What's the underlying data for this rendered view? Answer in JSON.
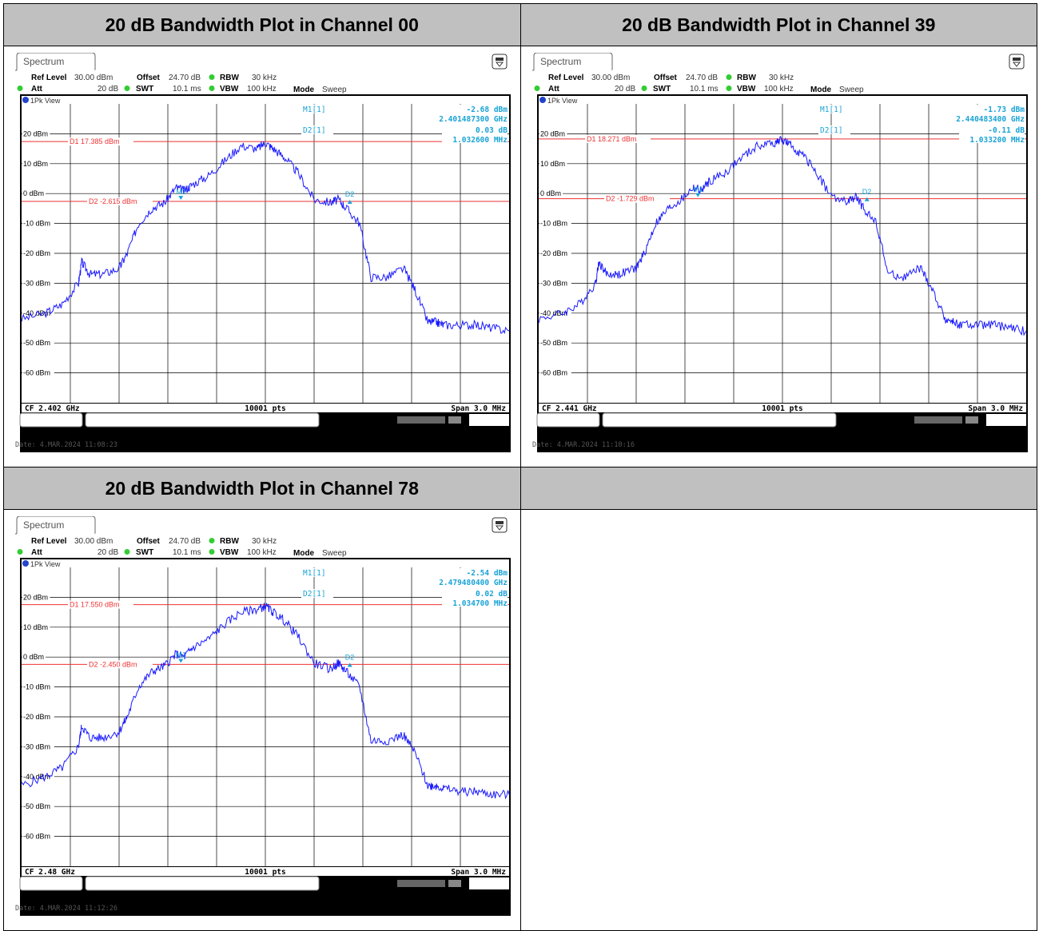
{
  "table": {
    "headers": [
      "20 dB Bandwidth Plot in Channel 00",
      "20 dB Bandwidth Plot in Channel 39",
      "20 dB Bandwidth Plot in Channel 78",
      ""
    ]
  },
  "common": {
    "tab_label": "Spectrum",
    "ref_level_label": "Ref Level",
    "ref_level": "30.00 dBm",
    "offset_label": "Offset",
    "offset": "24.70 dB",
    "rbw_label": "RBW",
    "rbw": "30 kHz",
    "att_label": "Att",
    "att": "20 dB",
    "swt_label": "SWT",
    "swt": "10.1 ms",
    "vbw_label": "VBW",
    "vbw": "100 kHz",
    "mode_label": "Mode",
    "mode": "Sweep",
    "view_label": "1Pk View",
    "pts": "10001 pts",
    "span": "Span 3.0 MHz",
    "m1_label": "M1[1]",
    "d2_label": "D2[1]",
    "m1_mark": "M1",
    "d2_mark": "D2",
    "y_ticks": [
      "20 dBm",
      "10 dBm",
      "0 dBm",
      "-10 dBm",
      "-20 dBm",
      "-30 dBm",
      "-40 dBm",
      "-50 dBm",
      "-60 dBm"
    ]
  },
  "plots": [
    {
      "m1_level": "-2.68 dBm",
      "m1_freq": "2.401487300 GHz",
      "d2_delta": "0.03 dB",
      "d2_freq": "1.032600 MHz",
      "d1_line": "D1  17.385 dBm",
      "d2_line": "D2  -2.615 dBm",
      "cf": "CF 2.402 GHz",
      "date": "Date: 4.MAR.2024  11:08:23"
    },
    {
      "m1_level": "-1.73 dBm",
      "m1_freq": "2.440483400 GHz",
      "d2_delta": "-0.11 dB",
      "d2_freq": "1.033200 MHz",
      "d1_line": "D1  18.271 dBm",
      "d2_line": "D2  -1.729 dBm",
      "cf": "CF 2.441 GHz",
      "date": "Date: 4.MAR.2024  11:10:16"
    },
    {
      "m1_level": "-2.54 dBm",
      "m1_freq": "2.479480400 GHz",
      "d2_delta": "0.02 dB",
      "d2_freq": "1.034700 MHz",
      "d1_line": "D1  17.550 dBm",
      "d2_line": "D2  -2.450 dBm",
      "cf": "CF 2.48 GHz",
      "date": "Date: 4.MAR.2024  11:12:26"
    }
  ],
  "chart_data": [
    {
      "type": "line",
      "ylim": [
        -70,
        30
      ],
      "xlim": [
        -1.5,
        1.5
      ],
      "d1_level": 17.385,
      "d2_level": -2.615,
      "series": [
        {
          "x": [
            -1.5,
            -1.35,
            -1.25,
            -1.15,
            -1.13,
            -1.08,
            -1.0,
            -0.9,
            -0.85,
            -0.78,
            -0.7,
            -0.62,
            -0.55,
            -0.5,
            -0.45,
            -0.35,
            -0.25,
            -0.15,
            -0.05,
            0.0,
            0.05,
            0.12,
            0.2,
            0.3,
            0.4,
            0.45,
            0.5,
            0.58,
            0.65,
            0.75,
            0.85,
            0.92,
            1.0,
            1.05,
            1.1,
            1.2,
            1.3,
            1.4,
            1.5
          ],
          "y": [
            -42,
            -40,
            -37,
            -30,
            -23,
            -27,
            -27,
            -25,
            -20,
            -10,
            -5,
            -3,
            2,
            1,
            3,
            6,
            11,
            16,
            15,
            17,
            15,
            12,
            7,
            -2,
            -3,
            -2,
            -5,
            -10,
            -28,
            -28,
            -25,
            -32,
            -43,
            -43,
            -44,
            -44,
            -44,
            -45,
            -46
          ]
        }
      ]
    },
    {
      "type": "line",
      "ylim": [
        -70,
        30
      ],
      "xlim": [
        -1.5,
        1.5
      ],
      "d1_level": 18.271,
      "d2_level": -1.729,
      "series": [
        {
          "x": [
            -1.5,
            -1.35,
            -1.25,
            -1.15,
            -1.13,
            -1.08,
            -1.0,
            -0.9,
            -0.85,
            -0.78,
            -0.7,
            -0.62,
            -0.55,
            -0.5,
            -0.45,
            -0.35,
            -0.25,
            -0.15,
            -0.05,
            0.0,
            0.05,
            0.12,
            0.2,
            0.3,
            0.4,
            0.45,
            0.5,
            0.58,
            0.65,
            0.75,
            0.85,
            0.92,
            1.0,
            1.05,
            1.1,
            1.2,
            1.3,
            1.4,
            1.5
          ],
          "y": [
            -42,
            -40,
            -37,
            -30,
            -23,
            -27,
            -27,
            -25,
            -20,
            -10,
            -5,
            -2,
            2,
            1,
            4,
            7,
            12,
            16,
            17,
            18,
            16,
            13,
            8,
            -1,
            -3,
            -1,
            -5,
            -10,
            -27,
            -28,
            -25,
            -32,
            -42,
            -43,
            -44,
            -44,
            -44,
            -45,
            -46
          ]
        }
      ]
    },
    {
      "type": "line",
      "ylim": [
        -70,
        30
      ],
      "xlim": [
        -1.5,
        1.5
      ],
      "d1_level": 17.55,
      "d2_level": -2.45,
      "series": [
        {
          "x": [
            -1.5,
            -1.35,
            -1.25,
            -1.15,
            -1.13,
            -1.08,
            -1.0,
            -0.9,
            -0.85,
            -0.78,
            -0.7,
            -0.62,
            -0.55,
            -0.5,
            -0.45,
            -0.35,
            -0.25,
            -0.15,
            -0.05,
            0.0,
            0.05,
            0.12,
            0.2,
            0.3,
            0.4,
            0.45,
            0.5,
            0.58,
            0.65,
            0.75,
            0.85,
            0.92,
            1.0,
            1.05,
            1.1,
            1.2,
            1.3,
            1.4,
            1.5
          ],
          "y": [
            -43,
            -40,
            -37,
            -30,
            -23,
            -27,
            -27,
            -25,
            -20,
            -10,
            -5,
            -3,
            1,
            0,
            3,
            6,
            11,
            15,
            16,
            17,
            15,
            12,
            7,
            -2,
            -4,
            -2,
            -5,
            -10,
            -28,
            -28,
            -26,
            -32,
            -43,
            -43,
            -44,
            -45,
            -45,
            -46,
            -46
          ]
        }
      ]
    }
  ]
}
